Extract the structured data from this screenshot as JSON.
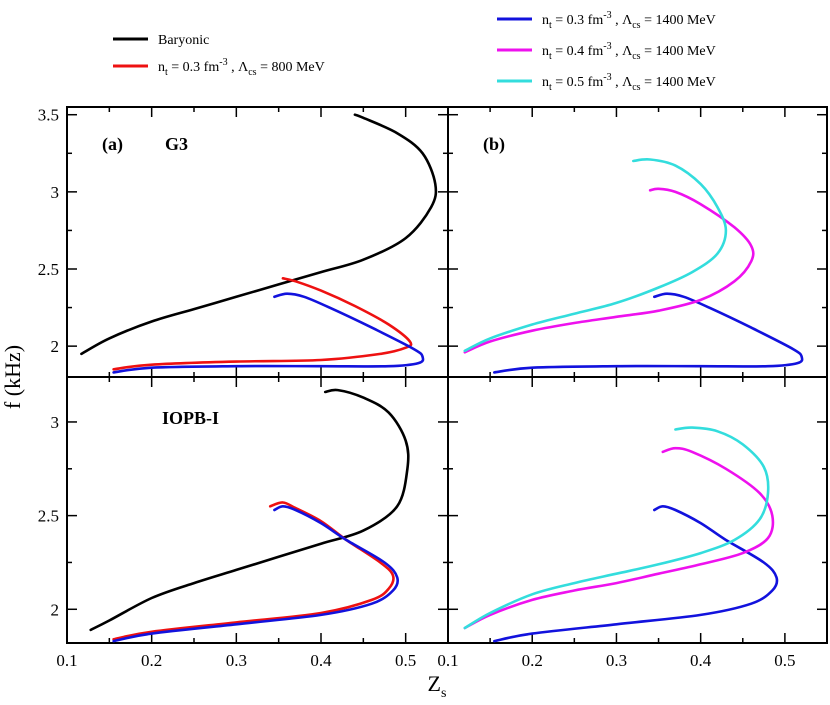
{
  "figure": {
    "xlabel": "Z",
    "xlabel_sub": "s",
    "ylabel": "f (kHz)"
  },
  "colors": {
    "baryonic": "#000000",
    "nt03_L800": "#ee1111",
    "nt03_L1400": "#1212dd",
    "nt04_L1400": "#ee11ee",
    "nt05_L1400": "#33dddd"
  },
  "legend": {
    "baryonic": "Baryonic",
    "nt03_L800": {
      "n": "n",
      "n_sub": "t",
      "mid": " = 0.3 fm",
      "sup": "-3",
      "sep": " , Λ",
      "lam_sub": "cs",
      "tail": " = 800 MeV"
    },
    "nt03_L1400": {
      "n": "n",
      "n_sub": "t",
      "mid": " = 0.3 fm",
      "sup": "-3",
      "sep": " , Λ",
      "lam_sub": "cs",
      "tail": " = 1400 MeV"
    },
    "nt04_L1400": {
      "n": "n",
      "n_sub": "t",
      "mid": " = 0.4 fm",
      "sup": "-3",
      "sep": " , Λ",
      "lam_sub": "cs",
      "tail": " = 1400 MeV"
    },
    "nt05_L1400": {
      "n": "n",
      "n_sub": "t",
      "mid": " = 0.5 fm",
      "sup": "-3",
      "sep": " , Λ",
      "lam_sub": "cs",
      "tail": " = 1400 MeV"
    }
  },
  "chart_data": [
    {
      "type": "line",
      "panel": "(a)",
      "annotation": "G3",
      "xlim": [
        0.1,
        0.55
      ],
      "ylim": [
        1.8,
        3.55
      ],
      "xticks": [
        "0.1",
        "0.2",
        "0.3",
        "0.4",
        "0.5"
      ],
      "yticks": [
        "2",
        "2.5",
        "3",
        "3.5"
      ],
      "series": [
        {
          "key": "baryonic",
          "x": [
            0.117,
            0.15,
            0.2,
            0.25,
            0.3,
            0.35,
            0.4,
            0.45,
            0.5,
            0.53,
            0.535,
            0.52,
            0.49,
            0.45,
            0.44
          ],
          "y": [
            1.95,
            2.05,
            2.16,
            2.24,
            2.32,
            2.4,
            2.48,
            2.56,
            2.7,
            2.9,
            3.05,
            3.25,
            3.38,
            3.48,
            3.5
          ]
        },
        {
          "key": "nt03_L800",
          "x": [
            0.155,
            0.2,
            0.3,
            0.4,
            0.47,
            0.5,
            0.505,
            0.48,
            0.44,
            0.4,
            0.37,
            0.355
          ],
          "y": [
            1.85,
            1.88,
            1.9,
            1.91,
            1.95,
            1.99,
            2.03,
            2.14,
            2.26,
            2.36,
            2.42,
            2.44
          ]
        },
        {
          "key": "nt03_L1400",
          "x": [
            0.155,
            0.2,
            0.3,
            0.4,
            0.48,
            0.515,
            0.52,
            0.51,
            0.46,
            0.41,
            0.38,
            0.36,
            0.345
          ],
          "y": [
            1.83,
            1.86,
            1.87,
            1.87,
            1.87,
            1.89,
            1.93,
            1.98,
            2.12,
            2.25,
            2.32,
            2.34,
            2.32
          ]
        }
      ]
    },
    {
      "type": "line",
      "panel": "(b)",
      "xlim": [
        0.1,
        0.55
      ],
      "ylim": [
        1.8,
        3.55
      ],
      "xticks": [
        "0.1",
        "0.2",
        "0.3",
        "0.4",
        "0.5"
      ],
      "yticks": [
        "2",
        "2.5",
        "3",
        "3.5"
      ],
      "series": [
        {
          "key": "nt03_L1400",
          "x": [
            0.155,
            0.2,
            0.3,
            0.4,
            0.48,
            0.515,
            0.52,
            0.51,
            0.46,
            0.41,
            0.38,
            0.36,
            0.345
          ],
          "y": [
            1.83,
            1.86,
            1.87,
            1.87,
            1.87,
            1.89,
            1.93,
            1.98,
            2.12,
            2.25,
            2.32,
            2.34,
            2.32
          ]
        },
        {
          "key": "nt04_L1400",
          "x": [
            0.12,
            0.15,
            0.2,
            0.25,
            0.3,
            0.35,
            0.4,
            0.44,
            0.46,
            0.46,
            0.44,
            0.4,
            0.37,
            0.35,
            0.34
          ],
          "y": [
            1.96,
            2.03,
            2.1,
            2.15,
            2.19,
            2.23,
            2.3,
            2.42,
            2.55,
            2.65,
            2.77,
            2.92,
            3.0,
            3.02,
            3.01
          ]
        },
        {
          "key": "nt05_L1400",
          "x": [
            0.12,
            0.15,
            0.2,
            0.25,
            0.3,
            0.35,
            0.39,
            0.42,
            0.43,
            0.42,
            0.4,
            0.37,
            0.34,
            0.32
          ],
          "y": [
            1.97,
            2.05,
            2.14,
            2.21,
            2.28,
            2.38,
            2.48,
            2.6,
            2.75,
            2.9,
            3.05,
            3.17,
            3.21,
            3.2
          ]
        }
      ]
    },
    {
      "type": "line",
      "annotation": "IOPB-I",
      "xlim": [
        0.1,
        0.55
      ],
      "ylim": [
        1.82,
        3.24
      ],
      "xticks": [
        "0.1",
        "0.2",
        "0.3",
        "0.4",
        "0.5"
      ],
      "yticks": [
        "2",
        "2.5",
        "3"
      ],
      "series": [
        {
          "key": "baryonic",
          "x": [
            0.128,
            0.15,
            0.2,
            0.25,
            0.3,
            0.35,
            0.4,
            0.45,
            0.49,
            0.502,
            0.5,
            0.48,
            0.45,
            0.42,
            0.405
          ],
          "y": [
            1.89,
            1.94,
            2.06,
            2.14,
            2.21,
            2.28,
            2.35,
            2.42,
            2.55,
            2.75,
            2.9,
            3.05,
            3.13,
            3.17,
            3.16
          ]
        },
        {
          "key": "nt03_L800",
          "x": [
            0.155,
            0.2,
            0.3,
            0.4,
            0.46,
            0.48,
            0.485,
            0.47,
            0.43,
            0.4,
            0.37,
            0.355,
            0.34
          ],
          "y": [
            1.84,
            1.88,
            1.93,
            1.98,
            2.05,
            2.11,
            2.18,
            2.25,
            2.37,
            2.47,
            2.54,
            2.57,
            2.55
          ]
        },
        {
          "key": "nt03_L1400",
          "x": [
            0.155,
            0.2,
            0.3,
            0.4,
            0.46,
            0.485,
            0.49,
            0.475,
            0.43,
            0.4,
            0.37,
            0.355,
            0.345
          ],
          "y": [
            1.83,
            1.87,
            1.92,
            1.97,
            2.03,
            2.1,
            2.17,
            2.25,
            2.37,
            2.46,
            2.53,
            2.55,
            2.53
          ]
        }
      ]
    },
    {
      "type": "line",
      "xlim": [
        0.1,
        0.55
      ],
      "ylim": [
        1.82,
        3.24
      ],
      "xticks": [
        "0.1",
        "0.2",
        "0.3",
        "0.4",
        "0.5"
      ],
      "yticks": [
        "2",
        "2.5",
        "3"
      ],
      "series": [
        {
          "key": "nt03_L1400",
          "x": [
            0.155,
            0.2,
            0.3,
            0.4,
            0.46,
            0.485,
            0.49,
            0.475,
            0.43,
            0.4,
            0.37,
            0.355,
            0.345
          ],
          "y": [
            1.83,
            1.87,
            1.92,
            1.97,
            2.03,
            2.1,
            2.17,
            2.25,
            2.37,
            2.46,
            2.53,
            2.55,
            2.53
          ]
        },
        {
          "key": "nt04_L1400",
          "x": [
            0.12,
            0.15,
            0.2,
            0.25,
            0.3,
            0.35,
            0.4,
            0.45,
            0.48,
            0.485,
            0.47,
            0.43,
            0.39,
            0.37,
            0.355
          ],
          "y": [
            1.9,
            1.97,
            2.05,
            2.1,
            2.14,
            2.19,
            2.24,
            2.3,
            2.38,
            2.5,
            2.62,
            2.75,
            2.84,
            2.86,
            2.84
          ]
        },
        {
          "key": "nt05_L1400",
          "x": [
            0.12,
            0.15,
            0.2,
            0.25,
            0.3,
            0.35,
            0.4,
            0.44,
            0.47,
            0.48,
            0.475,
            0.45,
            0.42,
            0.39,
            0.37
          ],
          "y": [
            1.9,
            1.98,
            2.08,
            2.14,
            2.19,
            2.24,
            2.3,
            2.37,
            2.48,
            2.62,
            2.76,
            2.88,
            2.95,
            2.97,
            2.96
          ]
        }
      ]
    }
  ]
}
